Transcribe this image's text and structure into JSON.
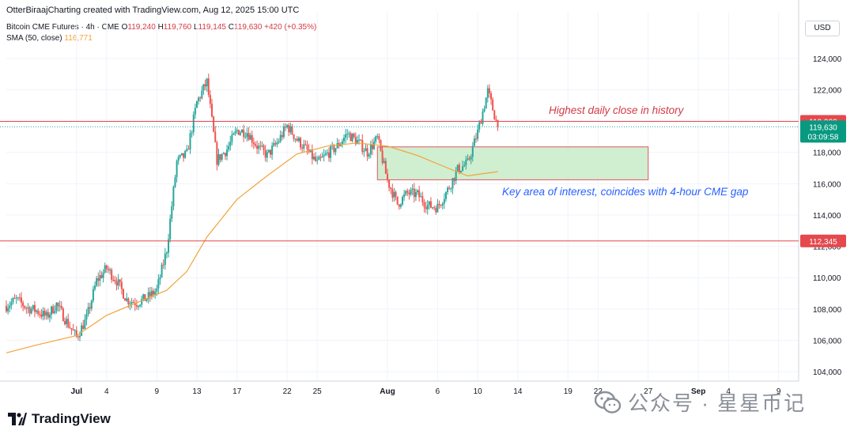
{
  "credit": "OtterBiraajCharting created with TradingView.com, Aug 12, 2025 15:00 UTC",
  "legend": {
    "symbol": "Bitcoin CME Futures · 4h · CME",
    "o_label": "O",
    "o": "119,240",
    "h_label": "H",
    "h": "119,760",
    "l_label": "L",
    "l": "119,145",
    "c_label": "C",
    "c": "119,630",
    "change": "+420 (+0.35%)",
    "sma_label": "SMA (50, close)",
    "sma_value": "116,771"
  },
  "currency": "USD",
  "brand": "TradingView",
  "watermark": "公众号 · 星星币记",
  "colors": {
    "up": "#26a69a",
    "down": "#ef5350",
    "sma": "#f2a33a",
    "level": "#e5484d",
    "zone_fill": "#c8ebc8",
    "zone_stroke": "#e25560",
    "annot_red": "#d33a45",
    "annot_blue": "#2962ff"
  },
  "chart_data": {
    "type": "candlestick",
    "y_axis": {
      "range": [
        103400,
        124900
      ],
      "ticks": [
        104000,
        106000,
        108000,
        110000,
        112000,
        114000,
        116000,
        118000,
        120000,
        122000,
        124000
      ],
      "tick_labels": [
        "104,000",
        "106,000",
        "108,000",
        "110,000",
        "112,000",
        "114,000",
        "116,000",
        "118,000",
        "120,000",
        "122,000",
        "124,000"
      ]
    },
    "x_axis": {
      "range_days": [
        "2025-06-24",
        "2025-09-11"
      ],
      "ticks": [
        {
          "date": "2025-07-01",
          "label": "Jul",
          "bold": true
        },
        {
          "date": "2025-07-04",
          "label": "4"
        },
        {
          "date": "2025-07-09",
          "label": "9"
        },
        {
          "date": "2025-07-13",
          "label": "13"
        },
        {
          "date": "2025-07-17",
          "label": "17"
        },
        {
          "date": "2025-07-22",
          "label": "22"
        },
        {
          "date": "2025-07-25",
          "label": "25"
        },
        {
          "date": "2025-08-01",
          "label": "Aug",
          "bold": true
        },
        {
          "date": "2025-08-06",
          "label": "6"
        },
        {
          "date": "2025-08-10",
          "label": "10"
        },
        {
          "date": "2025-08-14",
          "label": "14"
        },
        {
          "date": "2025-08-19",
          "label": "19"
        },
        {
          "date": "2025-08-22",
          "label": "22"
        },
        {
          "date": "2025-08-27",
          "label": "27"
        },
        {
          "date": "2025-09-01",
          "label": "Sep",
          "bold": true
        },
        {
          "date": "2025-09-04",
          "label": "4"
        },
        {
          "date": "2025-09-09",
          "label": "9"
        }
      ]
    },
    "path": [
      [
        "2025-06-24",
        108200
      ],
      [
        "2025-06-25",
        108600
      ],
      [
        "2025-06-26",
        108100
      ],
      [
        "2025-06-27",
        107900
      ],
      [
        "2025-06-28",
        107500
      ],
      [
        "2025-06-29",
        108300
      ],
      [
        "2025-06-30",
        107200
      ],
      [
        "2025-07-01",
        106200
      ],
      [
        "2025-07-02",
        107400
      ],
      [
        "2025-07-03",
        109800
      ],
      [
        "2025-07-04",
        110600
      ],
      [
        "2025-07-05",
        109800
      ],
      [
        "2025-07-06",
        108600
      ],
      [
        "2025-07-07",
        108400
      ],
      [
        "2025-07-08",
        108700
      ],
      [
        "2025-07-09",
        109200
      ],
      [
        "2025-07-10",
        111800
      ],
      [
        "2025-07-11",
        117400
      ],
      [
        "2025-07-12",
        117900
      ],
      [
        "2025-07-13",
        121200
      ],
      [
        "2025-07-14",
        122500
      ],
      [
        "2025-07-15",
        117500
      ],
      [
        "2025-07-16",
        118200
      ],
      [
        "2025-07-17",
        119400
      ],
      [
        "2025-07-18",
        119300
      ],
      [
        "2025-07-19",
        118400
      ],
      [
        "2025-07-20",
        117800
      ],
      [
        "2025-07-21",
        118600
      ],
      [
        "2025-07-22",
        119700
      ],
      [
        "2025-07-23",
        118800
      ],
      [
        "2025-07-24",
        118100
      ],
      [
        "2025-07-25",
        117300
      ],
      [
        "2025-07-26",
        117900
      ],
      [
        "2025-07-27",
        118400
      ],
      [
        "2025-07-28",
        119200
      ],
      [
        "2025-07-29",
        118700
      ],
      [
        "2025-07-30",
        118000
      ],
      [
        "2025-07-31",
        118900
      ],
      [
        "2025-08-01",
        116200
      ],
      [
        "2025-08-02",
        114700
      ],
      [
        "2025-08-03",
        115400
      ],
      [
        "2025-08-04",
        115300
      ],
      [
        "2025-08-05",
        114600
      ],
      [
        "2025-08-06",
        114500
      ],
      [
        "2025-08-07",
        115600
      ],
      [
        "2025-08-08",
        116900
      ],
      [
        "2025-08-09",
        117300
      ],
      [
        "2025-08-10",
        119300
      ],
      [
        "2025-08-11",
        121900
      ],
      [
        "2025-08-12",
        119630
      ]
    ],
    "sma_path": [
      [
        "2025-06-24",
        105200
      ],
      [
        "2025-06-27",
        105700
      ],
      [
        "2025-07-01",
        106300
      ],
      [
        "2025-07-04",
        107600
      ],
      [
        "2025-07-07",
        108400
      ],
      [
        "2025-07-10",
        109200
      ],
      [
        "2025-07-12",
        110400
      ],
      [
        "2025-07-14",
        112600
      ],
      [
        "2025-07-17",
        115000
      ],
      [
        "2025-07-20",
        116500
      ],
      [
        "2025-07-23",
        117900
      ],
      [
        "2025-07-26",
        118400
      ],
      [
        "2025-07-29",
        118600
      ],
      [
        "2025-08-01",
        118400
      ],
      [
        "2025-08-04",
        117800
      ],
      [
        "2025-08-07",
        117000
      ],
      [
        "2025-08-09",
        116500
      ],
      [
        "2025-08-12",
        116771
      ]
    ],
    "levels": [
      {
        "name": "highest-daily-close",
        "value": 119980,
        "label": "119,980"
      },
      {
        "name": "support",
        "value": 112345,
        "label": "112,345"
      }
    ],
    "last_price": {
      "value": 119630,
      "label": "119,630",
      "timer": "03:09:58"
    },
    "zone": {
      "x0": "2025-07-31",
      "x1": "2025-08-27",
      "y0": 116250,
      "y1": 118350
    },
    "annotations": [
      {
        "text": "Highest daily close in history",
        "date": "2025-08-14",
        "price": 120660,
        "color": "red"
      },
      {
        "text": "Key area of interest, coincides with 4-hour CME gap",
        "date": "2025-08-14",
        "price": 115450,
        "color": "blue"
      }
    ]
  }
}
